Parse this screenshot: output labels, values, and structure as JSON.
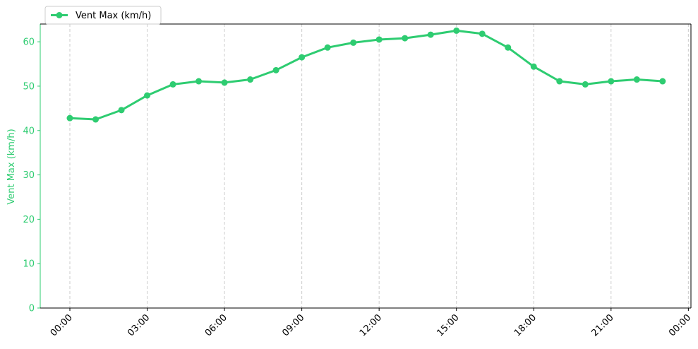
{
  "chart_data": {
    "type": "line",
    "ylabel": "Vent Max (km/h)",
    "ylim": [
      0,
      64
    ],
    "yticks": [
      0,
      10,
      20,
      30,
      40,
      50,
      60
    ],
    "xtick_labels": [
      "00:00",
      "03:00",
      "06:00",
      "09:00",
      "12:00",
      "15:00",
      "18:00",
      "21:00",
      "00:00"
    ],
    "xtick_hours": [
      0,
      3,
      6,
      9,
      12,
      15,
      18,
      21,
      24
    ],
    "xlim_hours": [
      -1.15,
      24.1
    ],
    "grid": "x-dashed",
    "legend_position": "top-left",
    "series": [
      {
        "name": "Vent Max (km/h)",
        "color": "#2ecc71",
        "x_hours": [
          0,
          1,
          2,
          3,
          4,
          5,
          6,
          7,
          8,
          9,
          10,
          11,
          12,
          13,
          14,
          15,
          16,
          17,
          18,
          19,
          20,
          21,
          22,
          23
        ],
        "values": [
          42.8,
          42.5,
          44.6,
          47.9,
          50.4,
          51.1,
          50.8,
          51.5,
          53.6,
          56.5,
          58.7,
          59.8,
          60.5,
          60.8,
          61.6,
          62.5,
          61.8,
          58.7,
          54.4,
          51.1,
          50.4,
          51.1,
          51.5,
          51.1
        ]
      }
    ]
  }
}
